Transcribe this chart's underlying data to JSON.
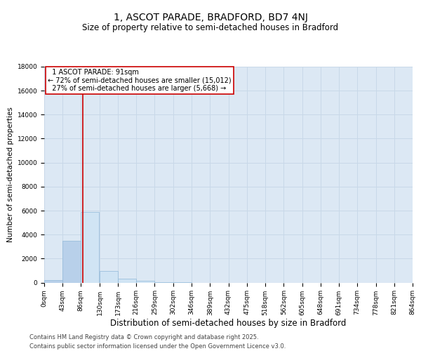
{
  "title": "1, ASCOT PARADE, BRADFORD, BD7 4NJ",
  "subtitle": "Size of property relative to semi-detached houses in Bradford",
  "xlabel": "Distribution of semi-detached houses by size in Bradford",
  "ylabel": "Number of semi-detached properties",
  "footnote1": "Contains HM Land Registry data © Crown copyright and database right 2025.",
  "footnote2": "Contains public sector information licensed under the Open Government Licence v3.0.",
  "annotation_line1": "1 ASCOT PARADE: 91sqm",
  "annotation_line2": "← 72% of semi-detached houses are smaller (15,012)",
  "annotation_line3": "27% of semi-detached houses are larger (5,668) →",
  "property_size": 91,
  "bins": [
    0,
    43,
    86,
    130,
    173,
    216,
    259,
    302,
    346,
    389,
    432,
    475,
    518,
    562,
    605,
    648,
    691,
    734,
    778,
    821,
    864
  ],
  "counts": [
    200,
    3500,
    5900,
    950,
    330,
    130,
    50,
    10,
    0,
    0,
    0,
    0,
    0,
    0,
    0,
    0,
    0,
    0,
    0,
    0
  ],
  "bar_color_left": "#b8d0ea",
  "bar_color_right": "#d0e4f4",
  "bar_edgecolor": "#90b8d8",
  "redline_color": "#cc0000",
  "annotation_box_edgecolor": "#cc0000",
  "grid_color": "#c8d8e8",
  "background_color": "#dce8f4",
  "ylim": [
    0,
    18000
  ],
  "yticks": [
    0,
    2000,
    4000,
    6000,
    8000,
    10000,
    12000,
    14000,
    16000,
    18000
  ],
  "title_fontsize": 10,
  "subtitle_fontsize": 8.5,
  "xlabel_fontsize": 8.5,
  "ylabel_fontsize": 7.5,
  "tick_fontsize": 6.5,
  "annotation_fontsize": 7,
  "footnote_fontsize": 6
}
